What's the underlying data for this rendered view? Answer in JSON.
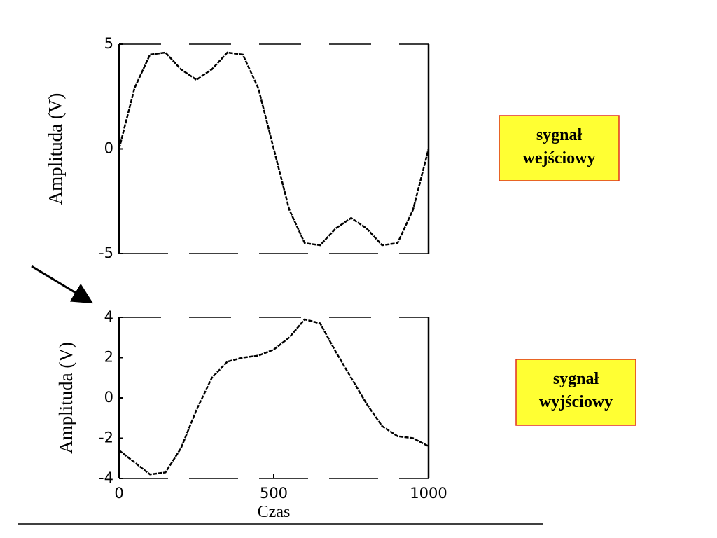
{
  "chart_data": [
    {
      "type": "line",
      "ylabel": "Amplituda (V)",
      "color": "#000000",
      "x": [
        0,
        50,
        100,
        150,
        200,
        250,
        300,
        350,
        400,
        450,
        500,
        550,
        600,
        650,
        700,
        750,
        800,
        850,
        900,
        950,
        1000
      ],
      "values": [
        0,
        2.9,
        4.5,
        4.6,
        3.8,
        3.3,
        3.8,
        4.6,
        4.5,
        2.9,
        0,
        -2.9,
        -4.5,
        -4.6,
        -3.8,
        -3.3,
        -3.8,
        -4.6,
        -4.5,
        -2.9,
        0
      ],
      "xlim": [
        0,
        1000
      ],
      "ylim": [
        -5,
        5
      ],
      "yticks": [
        -5,
        0,
        5
      ],
      "annotation": [
        "sygnał",
        "wejściowy"
      ]
    },
    {
      "type": "line",
      "ylabel": "Amplituda (V)",
      "xlabel": "Czas",
      "color": "#000000",
      "x": [
        0,
        50,
        100,
        150,
        200,
        250,
        300,
        350,
        400,
        450,
        500,
        550,
        600,
        650,
        700,
        750,
        800,
        850,
        900,
        950,
        1000
      ],
      "values": [
        -2.6,
        -3.2,
        -3.8,
        -3.7,
        -2.5,
        -0.6,
        1.0,
        1.8,
        2.0,
        2.1,
        2.4,
        3.0,
        3.9,
        3.7,
        2.3,
        1.0,
        -0.3,
        -1.4,
        -1.9,
        -2.0,
        -2.4
      ],
      "xlim": [
        0,
        1000
      ],
      "ylim": [
        -4,
        4
      ],
      "xticks": [
        0,
        500,
        1000
      ],
      "yticks": [
        -4,
        -2,
        0,
        2,
        4
      ],
      "annotation": [
        "sygnał",
        "wyjściowy"
      ]
    }
  ]
}
